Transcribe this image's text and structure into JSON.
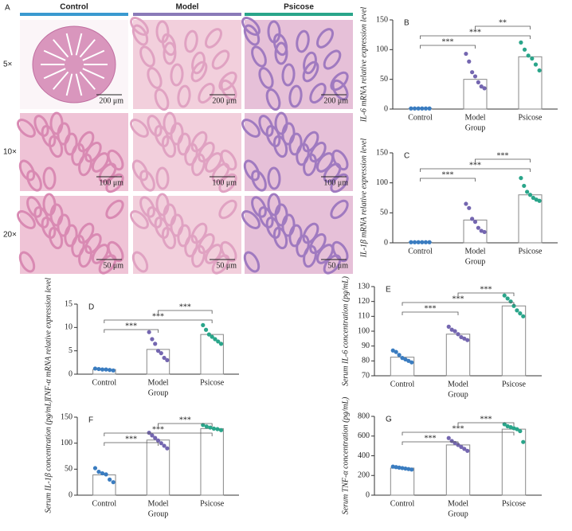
{
  "histology": {
    "label": "A",
    "columns": [
      "Control",
      "Model",
      "Psicose"
    ],
    "rows": [
      {
        "label": "5×",
        "scales": [
          "200 μm",
          "200 μm",
          "200 μm"
        ]
      },
      {
        "label": "10×",
        "scales": [
          "100 μm",
          "100 μm",
          "100 μm"
        ]
      },
      {
        "label": "20×",
        "scales": [
          "50 μm",
          "50 μm",
          "50 μm"
        ]
      }
    ]
  },
  "chart_data": [
    {
      "type": "bar",
      "label": "B",
      "ylabel": "IL-6 mRNA relative expression level",
      "xlabel": "Group",
      "categories": [
        "Control",
        "Model",
        "Psicose"
      ],
      "colors": [
        "#3a7cc0",
        "#7466b0",
        "#2aa58a"
      ],
      "values": [
        1,
        50,
        88
      ],
      "points": [
        [
          1,
          1,
          1,
          1,
          1,
          1
        ],
        [
          93,
          80,
          62,
          55,
          45,
          38,
          35
        ],
        [
          112,
          100,
          90,
          85,
          75,
          65
        ]
      ],
      "significance": [
        "***",
        "***",
        "**"
      ],
      "ylim": [
        0,
        150
      ],
      "yticks": [
        0,
        50,
        100,
        150
      ]
    },
    {
      "type": "bar",
      "label": "C",
      "ylabel": "IL-1β mRNA relative expression level",
      "xlabel": "Group",
      "categories": [
        "Control",
        "Model",
        "Psicose"
      ],
      "colors": [
        "#3a7cc0",
        "#7466b0",
        "#2aa58a"
      ],
      "values": [
        1,
        38,
        80
      ],
      "points": [
        [
          1,
          1,
          1,
          1,
          1,
          1
        ],
        [
          65,
          58,
          40,
          35,
          25,
          20,
          18
        ],
        [
          108,
          95,
          85,
          80,
          75,
          72,
          70
        ]
      ],
      "significance": [
        "***",
        "***",
        "***"
      ],
      "ylim": [
        0,
        150
      ],
      "yticks": [
        0,
        50,
        100,
        150
      ]
    },
    {
      "type": "bar",
      "label": "D",
      "ylabel": "TNF-α mRNA relative expression level",
      "xlabel": "Group",
      "categories": [
        "Control",
        "Model",
        "Psicose"
      ],
      "colors": [
        "#3a7cc0",
        "#7466b0",
        "#2aa58a"
      ],
      "values": [
        1,
        5.3,
        8.5
      ],
      "points": [
        [
          1.2,
          1.1,
          1,
          1,
          0.9,
          0.8
        ],
        [
          9,
          7.5,
          6.5,
          5,
          4.5,
          3.5,
          3
        ],
        [
          10.5,
          9.5,
          8.5,
          8,
          7.5,
          7,
          6.5
        ]
      ],
      "significance": [
        "***",
        "***",
        "***"
      ],
      "ylim": [
        0,
        15
      ],
      "yticks": [
        0,
        5,
        10,
        15
      ]
    },
    {
      "type": "bar",
      "label": "E",
      "ylabel": "Serum IL-6 concentration (pg/mL)",
      "xlabel": "Group",
      "categories": [
        "Control",
        "Model",
        "Psicose"
      ],
      "colors": [
        "#3a7cc0",
        "#7466b0",
        "#2aa58a"
      ],
      "values": [
        82.5,
        98,
        117
      ],
      "points": [
        [
          87,
          86,
          84,
          82,
          81,
          80,
          79
        ],
        [
          103,
          101,
          100,
          98,
          96,
          95,
          94
        ],
        [
          124,
          122,
          120,
          117,
          114,
          112,
          110
        ]
      ],
      "significance": [
        "***",
        "***",
        "***"
      ],
      "ylim": [
        70,
        130
      ],
      "yticks": [
        70,
        80,
        90,
        100,
        110,
        120,
        130
      ]
    },
    {
      "type": "bar",
      "label": "F",
      "ylabel": "Serum IL-1β concentration (pg/mL)",
      "xlabel": "Group",
      "categories": [
        "Control",
        "Model",
        "Psicose"
      ],
      "colors": [
        "#3a7cc0",
        "#7466b0",
        "#2aa58a"
      ],
      "values": [
        39,
        106,
        128
      ],
      "points": [
        [
          52,
          45,
          42,
          40,
          30,
          25
        ],
        [
          120,
          115,
          110,
          105,
          100,
          95,
          90
        ],
        [
          135,
          132,
          130,
          128,
          127,
          125
        ]
      ],
      "significance": [
        "***",
        "***",
        "***"
      ],
      "ylim": [
        0,
        150
      ],
      "yticks": [
        0,
        50,
        100,
        150
      ]
    },
    {
      "type": "bar",
      "label": "G",
      "ylabel": "Serum TNF-α concentration (pg/mL)",
      "xlabel": "Group",
      "categories": [
        "Control",
        "Model",
        "Psicose"
      ],
      "colors": [
        "#3a7cc0",
        "#7466b0",
        "#2aa58a"
      ],
      "values": [
        275,
        510,
        670
      ],
      "points": [
        [
          290,
          285,
          280,
          275,
          270,
          265,
          260
        ],
        [
          580,
          550,
          530,
          510,
          490,
          470,
          450
        ],
        [
          720,
          700,
          690,
          680,
          670,
          650,
          540
        ]
      ],
      "significance": [
        "***",
        "***",
        "***"
      ],
      "ylim": [
        0,
        800
      ],
      "yticks": [
        0,
        200,
        400,
        600,
        800
      ]
    }
  ]
}
